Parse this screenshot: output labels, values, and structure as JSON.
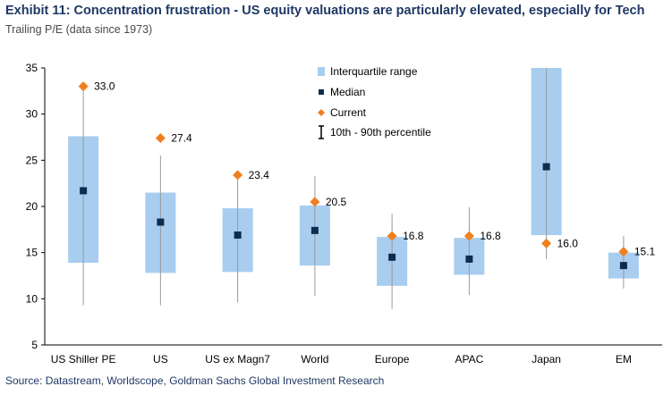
{
  "header": {
    "title": "Exhibit 11: Concentration frustration - US equity valuations are particularly elevated, especially for Tech",
    "subtitle": "Trailing P/E (data since 1973)"
  },
  "footer": {
    "source": "Source: Datastream, Worldscope, Goldman Sachs Global Investment Research"
  },
  "colors": {
    "iqr": "#a8cdef",
    "median": "#0d2d4f",
    "current": "#f07f1e",
    "whisker": "#9a9a9a",
    "axis": "#000000"
  },
  "chart_data": {
    "type": "box",
    "title": "Exhibit 11: Concentration frustration - US equity valuations are particularly elevated, especially for Tech",
    "ylabel": "Trailing P/E (data since 1973)",
    "ylim": [
      5,
      35
    ],
    "yticks": [
      "5",
      "10",
      "15",
      "20",
      "25",
      "30",
      "35"
    ],
    "ytick_values": [
      5,
      10,
      15,
      20,
      25,
      30,
      35
    ],
    "grid": false,
    "legend_position": "top-center",
    "legend": [
      {
        "key": "iqr",
        "label": "Interquartile range"
      },
      {
        "key": "median",
        "label": "Median"
      },
      {
        "key": "current",
        "label": "Current"
      },
      {
        "key": "range",
        "label": "10th - 90th percentile"
      }
    ],
    "categories": [
      "US Shiller PE",
      "US",
      "US ex Magn7",
      "World",
      "Europe",
      "APAC",
      "Japan",
      "EM"
    ],
    "p10": [
      9.3,
      9.3,
      9.6,
      10.3,
      8.9,
      10.4,
      14.3,
      11.1
    ],
    "q1": [
      13.9,
      12.8,
      12.9,
      13.6,
      11.4,
      12.6,
      16.9,
      12.2
    ],
    "median": [
      21.7,
      18.3,
      16.9,
      17.4,
      14.5,
      14.3,
      24.3,
      13.6
    ],
    "q3": [
      27.6,
      21.5,
      19.8,
      20.1,
      16.7,
      16.6,
      35.0,
      15.0
    ],
    "p90": [
      33.0,
      25.5,
      23.4,
      23.3,
      19.2,
      19.9,
      35.0,
      16.8
    ],
    "current": [
      33.0,
      27.4,
      23.4,
      20.5,
      16.8,
      16.8,
      16.0,
      15.1
    ],
    "current_labels": [
      "33.0",
      "27.4",
      "23.4",
      "20.5",
      "16.8",
      "16.8",
      "16.0",
      "15.1"
    ]
  }
}
